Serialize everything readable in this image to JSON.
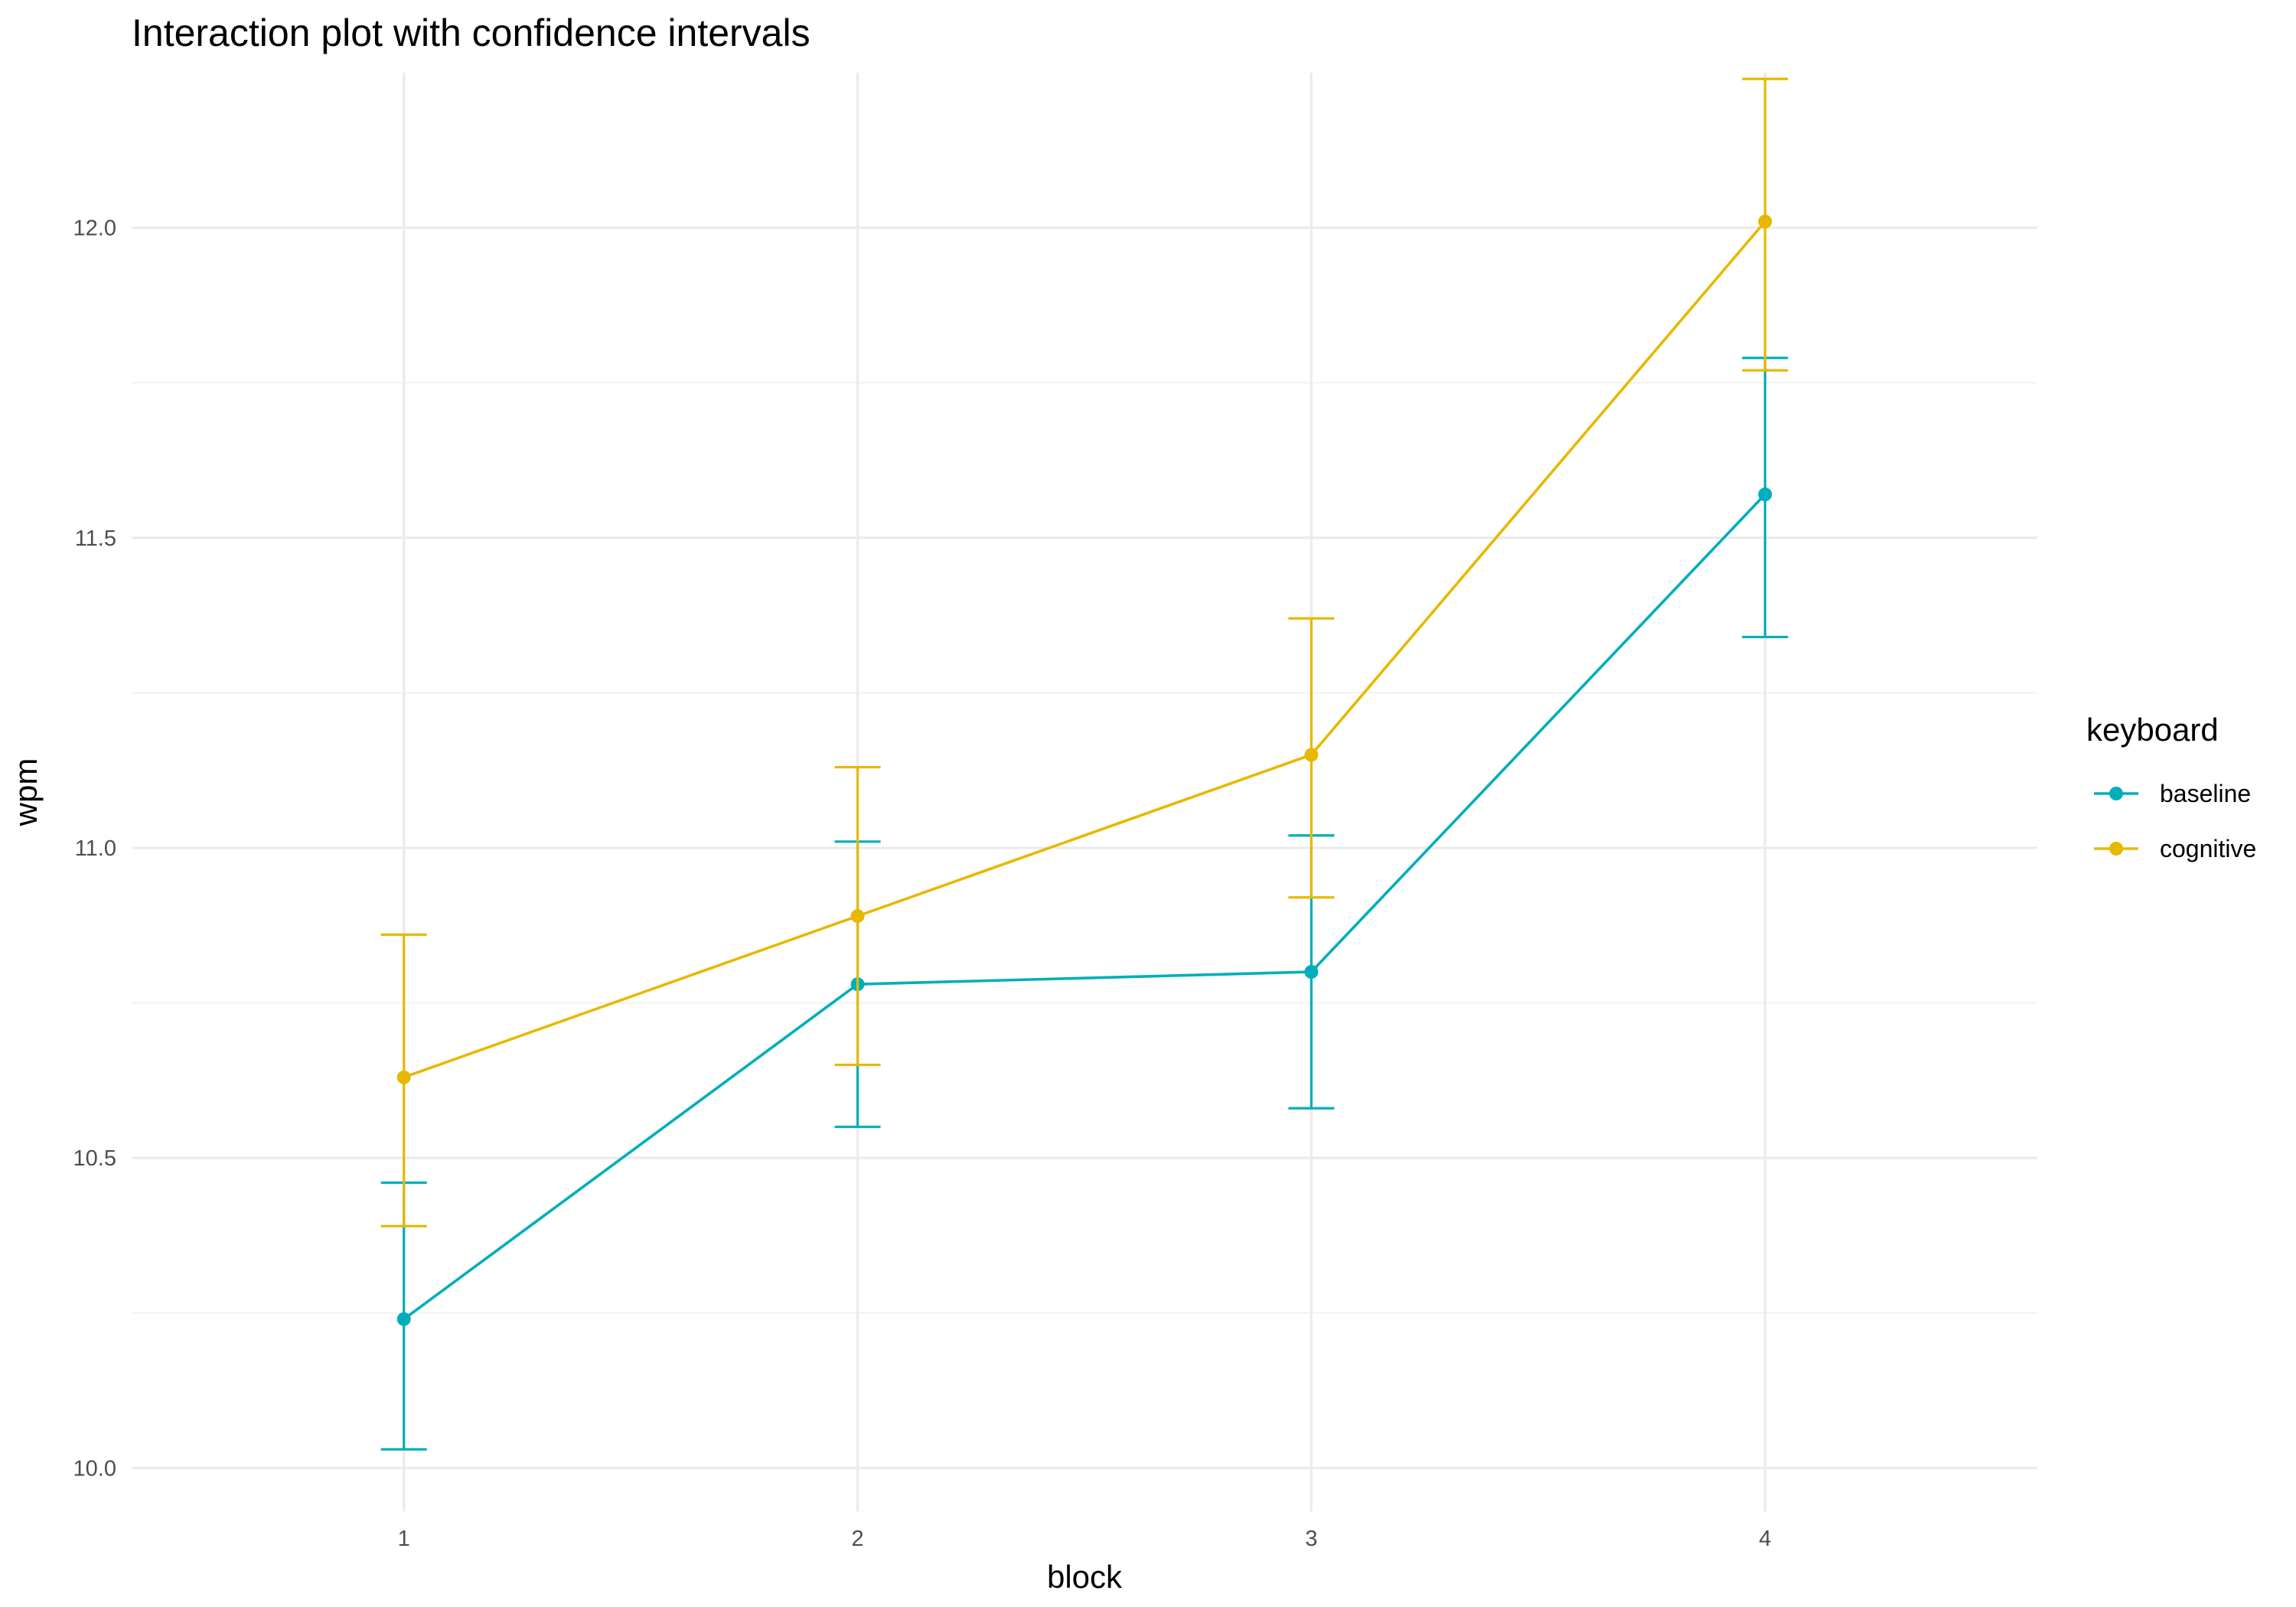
{
  "chart_data": {
    "type": "line",
    "title": "Interaction plot with confidence intervals",
    "xlabel": "block",
    "ylabel": "wpm",
    "categories": [
      "1",
      "2",
      "3",
      "4"
    ],
    "x": [
      1,
      2,
      3,
      4
    ],
    "xlim": [
      0.4,
      4.6
    ],
    "ylim": [
      9.93,
      12.25
    ],
    "y_ticks": [
      10.0,
      10.5,
      11.0,
      11.5,
      12.0
    ],
    "y_tick_labels": [
      "10.0",
      "10.5",
      "11.0",
      "11.5",
      "12.0"
    ],
    "grid": true,
    "error_bars": "confidence interval",
    "legend": {
      "title": "keyboard",
      "position": "right"
    },
    "series": [
      {
        "name": "baseline",
        "color": "#00aebb",
        "values": [
          10.24,
          10.78,
          10.8,
          11.57
        ],
        "ci_lower": [
          10.03,
          10.55,
          10.58,
          11.34
        ],
        "ci_upper": [
          10.46,
          11.01,
          11.02,
          11.79
        ]
      },
      {
        "name": "cognitive",
        "color": "#e7b800",
        "values": [
          10.63,
          10.89,
          11.15,
          12.01
        ],
        "ci_lower": [
          10.39,
          10.65,
          10.92,
          11.77
        ],
        "ci_upper": [
          10.86,
          11.13,
          11.37,
          12.24
        ]
      }
    ]
  }
}
